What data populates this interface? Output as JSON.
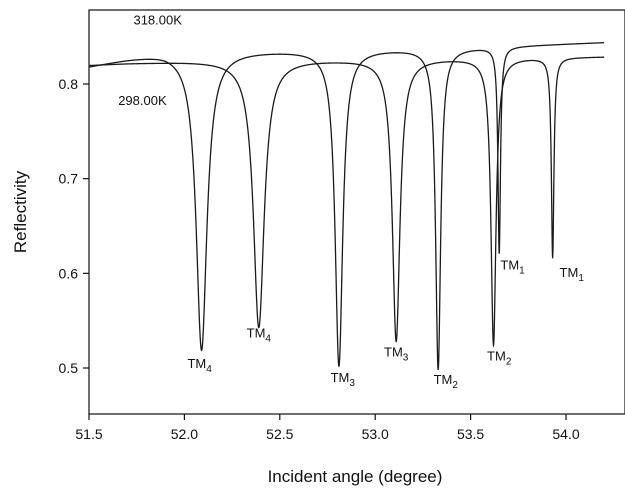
{
  "chart_data": {
    "type": "line",
    "xlabel": "Incident angle (degree)",
    "ylabel": "Reflectivity",
    "xlim": [
      51.5,
      54.2
    ],
    "ylim": [
      0.45,
      0.875
    ],
    "xticks": [
      "51.5",
      "52.0",
      "52.5",
      "53.0",
      "53.5",
      "54.0"
    ],
    "yticks": [
      "0.5",
      "0.6",
      "0.7",
      "0.8"
    ],
    "grid": false,
    "legend": "none",
    "series": [
      {
        "name": "318.00K",
        "baseline": [
          [
            51.5,
            0.819
          ],
          [
            51.7,
            0.827
          ],
          [
            51.9,
            0.834
          ],
          [
            52.2,
            0.835
          ],
          [
            52.6,
            0.836
          ],
          [
            53.0,
            0.837
          ],
          [
            53.4,
            0.838
          ],
          [
            53.8,
            0.841
          ],
          [
            54.2,
            0.844
          ]
        ],
        "dips": [
          {
            "label": "TM4",
            "x": 52.09,
            "y": 0.519
          },
          {
            "label": "TM3",
            "x": 52.81,
            "y": 0.503
          },
          {
            "label": "TM2",
            "x": 53.33,
            "y": 0.499
          },
          {
            "label": "TM1",
            "x": 53.65,
            "y": 0.622
          }
        ]
      },
      {
        "name": "298.00K",
        "baseline": [
          [
            51.5,
            0.82
          ],
          [
            51.7,
            0.822
          ],
          [
            52.0,
            0.824
          ],
          [
            52.4,
            0.826
          ],
          [
            52.8,
            0.826
          ],
          [
            53.2,
            0.827
          ],
          [
            53.6,
            0.828
          ],
          [
            54.2,
            0.829
          ]
        ],
        "dips": [
          {
            "label": "TM4",
            "x": 52.39,
            "y": 0.543
          },
          {
            "label": "TM3",
            "x": 53.11,
            "y": 0.529
          },
          {
            "label": "TM2",
            "x": 53.62,
            "y": 0.525
          },
          {
            "label": "TM1",
            "x": 53.93,
            "y": 0.617
          }
        ]
      }
    ],
    "annotations": [
      {
        "base": "TM",
        "sub": "4",
        "x": 52.08,
        "y": 0.5
      },
      {
        "base": "TM",
        "sub": "4",
        "x": 52.39,
        "y": 0.532
      },
      {
        "base": "TM",
        "sub": "3",
        "x": 52.83,
        "y": 0.485
      },
      {
        "base": "TM",
        "sub": "3",
        "x": 53.11,
        "y": 0.512
      },
      {
        "base": "TM",
        "sub": "2",
        "x": 53.37,
        "y": 0.483
      },
      {
        "base": "TM",
        "sub": "2",
        "x": 53.65,
        "y": 0.508
      },
      {
        "base": "TM",
        "sub": "1",
        "x": 53.72,
        "y": 0.604
      },
      {
        "base": "TM",
        "sub": "1",
        "x": 54.03,
        "y": 0.596
      },
      {
        "base": "318.00K",
        "sub": "",
        "x": 51.86,
        "y": 0.863
      },
      {
        "base": "298.00K",
        "sub": "",
        "x": 51.78,
        "y": 0.778
      }
    ]
  }
}
